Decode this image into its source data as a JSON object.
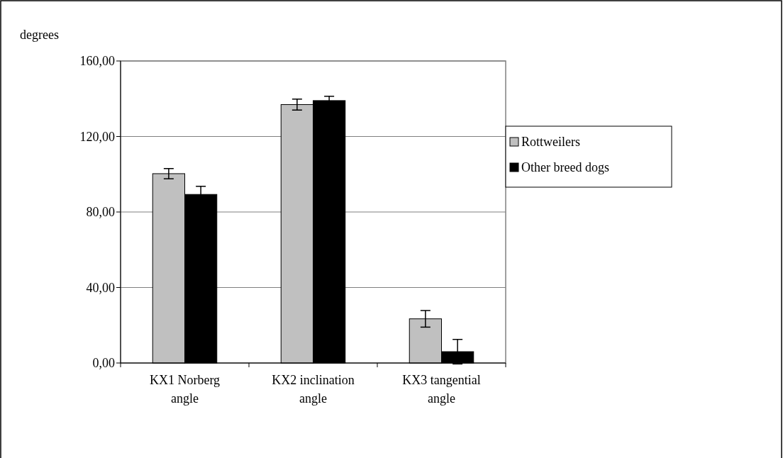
{
  "chart_data": {
    "type": "bar",
    "ylabel": "degrees",
    "categories": [
      "KX1 Norberg angle",
      "KX2 inclination angle",
      "KX3 tangential angle"
    ],
    "series": [
      {
        "name": "Rottweilers",
        "color": "#c0c0c0",
        "values": [
          100.3,
          136.9,
          23.4
        ],
        "errors": [
          2.7,
          2.9,
          4.4
        ]
      },
      {
        "name": "Other breed dogs",
        "color": "#000000",
        "values": [
          89.3,
          139,
          6
        ],
        "errors": [
          4.3,
          2.3,
          6.5
        ]
      }
    ],
    "ylim": [
      0,
      160
    ],
    "yticks": [
      {
        "value": 0,
        "label": "0,00"
      },
      {
        "value": 40,
        "label": "40,00"
      },
      {
        "value": 80,
        "label": "80,00"
      },
      {
        "value": 120,
        "label": "120,00"
      },
      {
        "value": 160,
        "label": "160,00"
      }
    ],
    "grid": "y",
    "legend": "right"
  }
}
